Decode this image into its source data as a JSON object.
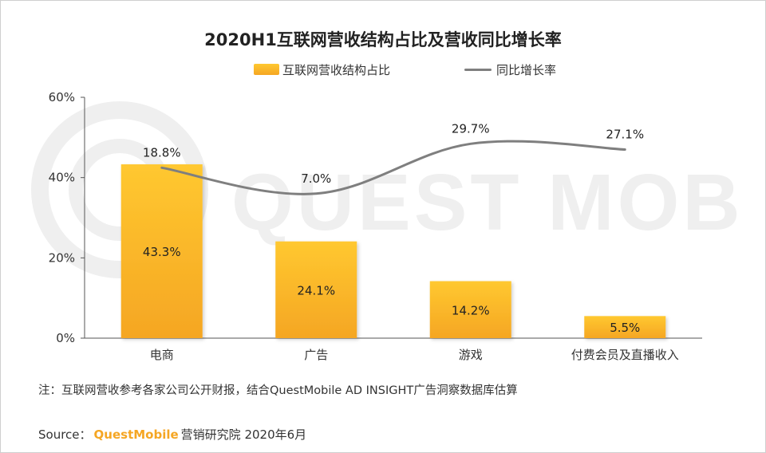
{
  "colors": {
    "bar_top": "#ffc830",
    "bar_bottom": "#f5a623",
    "line": "#7f7f7f",
    "axis": "#555555",
    "watermark": "#efefef",
    "brand": "#f5a623"
  },
  "watermark_text": "QUEST MOBILE",
  "note": "注：互联网营收参考各家公司公开财报，结合QuestMobile AD INSIGHT广告洞察数据库估算",
  "source": {
    "prefix": "Source：",
    "brand": "QuestMobile",
    "suffix": "营销研究院 2020年6月"
  },
  "chart_data": {
    "type": "bar",
    "title": "2020H1互联网营收结构占比及营收同比增长率",
    "categories": [
      "电商",
      "广告",
      "游戏",
      "付费会员及直播收入"
    ],
    "series": [
      {
        "name": "互联网营收结构占比",
        "type": "bar",
        "values": [
          43.3,
          24.1,
          14.2,
          5.5
        ],
        "labels": [
          "43.3%",
          "24.1%",
          "14.2%",
          "5.5%"
        ]
      },
      {
        "name": "同比增长率",
        "type": "line",
        "values": [
          18.8,
          7.0,
          29.7,
          27.1
        ],
        "labels": [
          "18.8%",
          "7.0%",
          "29.7%",
          "27.1%"
        ]
      }
    ],
    "yticks": [
      "0%",
      "20%",
      "40%",
      "60%"
    ],
    "ylim": [
      0,
      60
    ],
    "legend": "top-center",
    "grid": false
  }
}
